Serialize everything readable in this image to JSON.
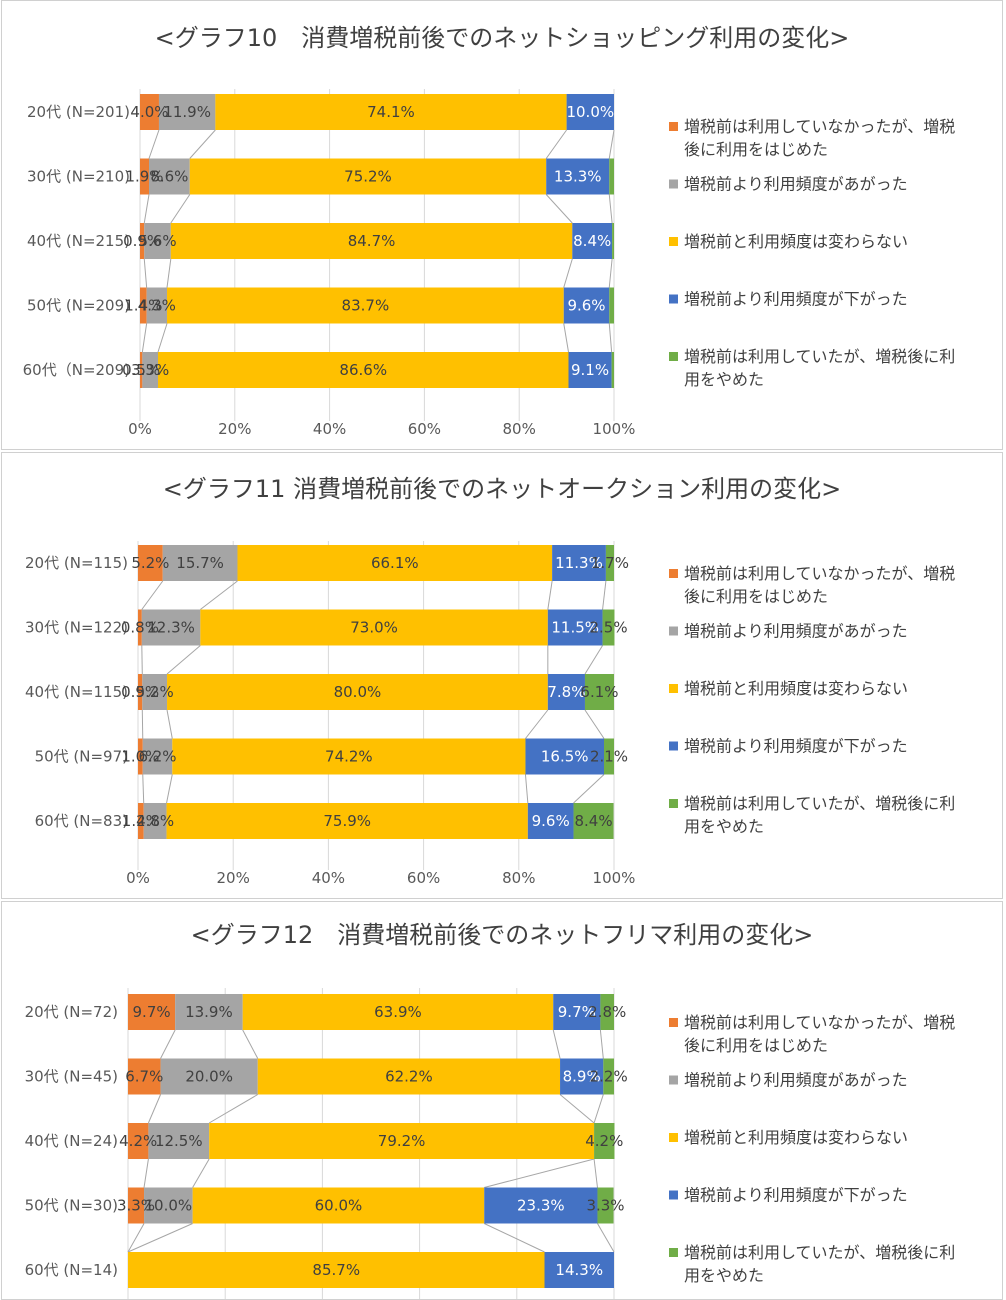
{
  "colors": {
    "orange": "#ED7D31",
    "gray": "#A5A5A5",
    "yellow": "#FFC000",
    "blue": "#4472C4",
    "green": "#70AD47",
    "grid": "#d9d9d9",
    "connector": "#a6a6a6"
  },
  "legend_items": [
    [
      "増税前は利用していなかったが、増税",
      "後に利用をはじめた"
    ],
    [
      "増税前より利用頻度があがった"
    ],
    [
      "増税前と利用頻度は変わらない"
    ],
    [
      "増税前より利用頻度が下がった"
    ],
    [
      "増税前は利用していたが、増税後に利",
      "用をやめた"
    ]
  ],
  "chart_data": [
    {
      "type": "bar",
      "orientation": "horizontal-stacked-100",
      "title": "<グラフ10　消費増税前後でのネットショッピング利用の変化>",
      "categories": [
        "20代 (N=201)",
        "30代 (N=210)",
        "40代 (N=215)",
        "50代 (N=209)",
        "60代（N=209)"
      ],
      "xlim": [
        0,
        100
      ],
      "x_ticks": [
        "0%",
        "20%",
        "40%",
        "60%",
        "80%",
        "100%"
      ],
      "grid": true,
      "legend": "right",
      "series": [
        {
          "name": "増税前は利用していなかったが、増税後に利用をはじめた",
          "values": [
            4.0,
            1.9,
            0.9,
            1.4,
            0.5
          ],
          "labels": [
            "4.0%",
            "1.9%",
            "0.9%",
            "1.4%",
            "0.5%"
          ]
        },
        {
          "name": "増税前より利用頻度があがった",
          "values": [
            11.9,
            8.6,
            5.6,
            4.3,
            3.3
          ],
          "labels": [
            "11.9%",
            "8.6%",
            "5.6%",
            "4.3%",
            "3.3%"
          ]
        },
        {
          "name": "増税前と利用頻度は変わらない",
          "values": [
            74.1,
            75.2,
            84.7,
            83.7,
            86.6
          ],
          "labels": [
            "74.1%",
            "75.2%",
            "84.7%",
            "83.7%",
            "86.6%"
          ]
        },
        {
          "name": "増税前より利用頻度が下がった",
          "values": [
            10.0,
            13.3,
            8.4,
            9.6,
            9.1
          ],
          "labels": [
            "10.0%",
            "13.3%",
            "8.4%",
            "9.6%",
            "9.1%"
          ]
        },
        {
          "name": "増税前は利用していたが、増税後に利用をやめた",
          "values": [
            0.0,
            1.0,
            0.4,
            1.0,
            0.5
          ],
          "labels": [
            "",
            "",
            "",
            "",
            ""
          ]
        }
      ]
    },
    {
      "type": "bar",
      "orientation": "horizontal-stacked-100",
      "title": "<グラフ11 消費増税前後でのネットオークション利用の変化>",
      "categories": [
        "20代 (N=115)",
        "30代 (N=122)",
        "40代 (N=115)",
        "50代 (N=97)",
        "60代 (N=83)"
      ],
      "xlim": [
        0,
        100
      ],
      "x_ticks": [
        "0%",
        "20%",
        "40%",
        "60%",
        "80%",
        "100%"
      ],
      "grid": true,
      "legend": "right",
      "series": [
        {
          "name": "増税前は利用していなかったが、増税後に利用をはじめた",
          "values": [
            5.2,
            0.8,
            0.9,
            1.0,
            1.2
          ],
          "labels": [
            "5.2%",
            "0.8%",
            "0.9%",
            "1.0%",
            "1.2%"
          ]
        },
        {
          "name": "増税前より利用頻度があがった",
          "values": [
            15.7,
            12.3,
            5.2,
            6.2,
            4.8
          ],
          "labels": [
            "15.7%",
            "12.3%",
            "5.2%",
            "6.2%",
            "4.8%"
          ]
        },
        {
          "name": "増税前と利用頻度は変わらない",
          "values": [
            66.1,
            73.0,
            80.0,
            74.2,
            75.9
          ],
          "labels": [
            "66.1%",
            "73.0%",
            "80.0%",
            "74.2%",
            "75.9%"
          ]
        },
        {
          "name": "増税前より利用頻度が下がった",
          "values": [
            11.3,
            11.5,
            7.8,
            16.5,
            9.6
          ],
          "labels": [
            "11.3%",
            "11.5%",
            "7.8%",
            "16.5%",
            "9.6%"
          ]
        },
        {
          "name": "増税前は利用していたが、増税後に利用をやめた",
          "values": [
            1.7,
            2.5,
            6.1,
            2.1,
            8.4
          ],
          "labels": [
            "1.7%",
            "2.5%",
            "6.1%",
            "2.1%",
            "8.4%"
          ]
        }
      ]
    },
    {
      "type": "bar",
      "orientation": "horizontal-stacked-100",
      "title": "<グラフ12　消費増税前後でのネットフリマ利用の変化>",
      "categories": [
        "20代 (N=72)",
        "30代 (N=45)",
        "40代 (N=24)",
        "50代 (N=30)",
        "60代 (N=14)"
      ],
      "xlim": [
        0,
        100
      ],
      "x_ticks": [],
      "grid": true,
      "legend": "right",
      "series": [
        {
          "name": "増税前は利用していなかったが、増税後に利用をはじめた",
          "values": [
            9.7,
            6.7,
            4.2,
            3.3,
            0.0
          ],
          "labels": [
            "9.7%",
            "6.7%",
            "4.2%",
            "3.3%",
            ""
          ]
        },
        {
          "name": "増税前より利用頻度があがった",
          "values": [
            13.9,
            20.0,
            12.5,
            10.0,
            0.0
          ],
          "labels": [
            "13.9%",
            "20.0%",
            "12.5%",
            "10.0%",
            ""
          ]
        },
        {
          "name": "増税前と利用頻度は変わらない",
          "values": [
            63.9,
            62.2,
            79.2,
            60.0,
            85.7
          ],
          "labels": [
            "63.9%",
            "62.2%",
            "79.2%",
            "60.0%",
            "85.7%"
          ]
        },
        {
          "name": "増税前より利用頻度が下がった",
          "values": [
            9.7,
            8.9,
            0.0,
            23.3,
            14.3
          ],
          "labels": [
            "9.7%",
            "8.9%",
            "",
            "23.3%",
            "14.3%"
          ]
        },
        {
          "name": "増税前は利用していたが、増税後に利用をやめた",
          "values": [
            2.8,
            2.2,
            4.2,
            3.3,
            0.0
          ],
          "labels": [
            "2.8%",
            "2.2%",
            "4.2%",
            "3.3%",
            ""
          ]
        }
      ]
    }
  ]
}
